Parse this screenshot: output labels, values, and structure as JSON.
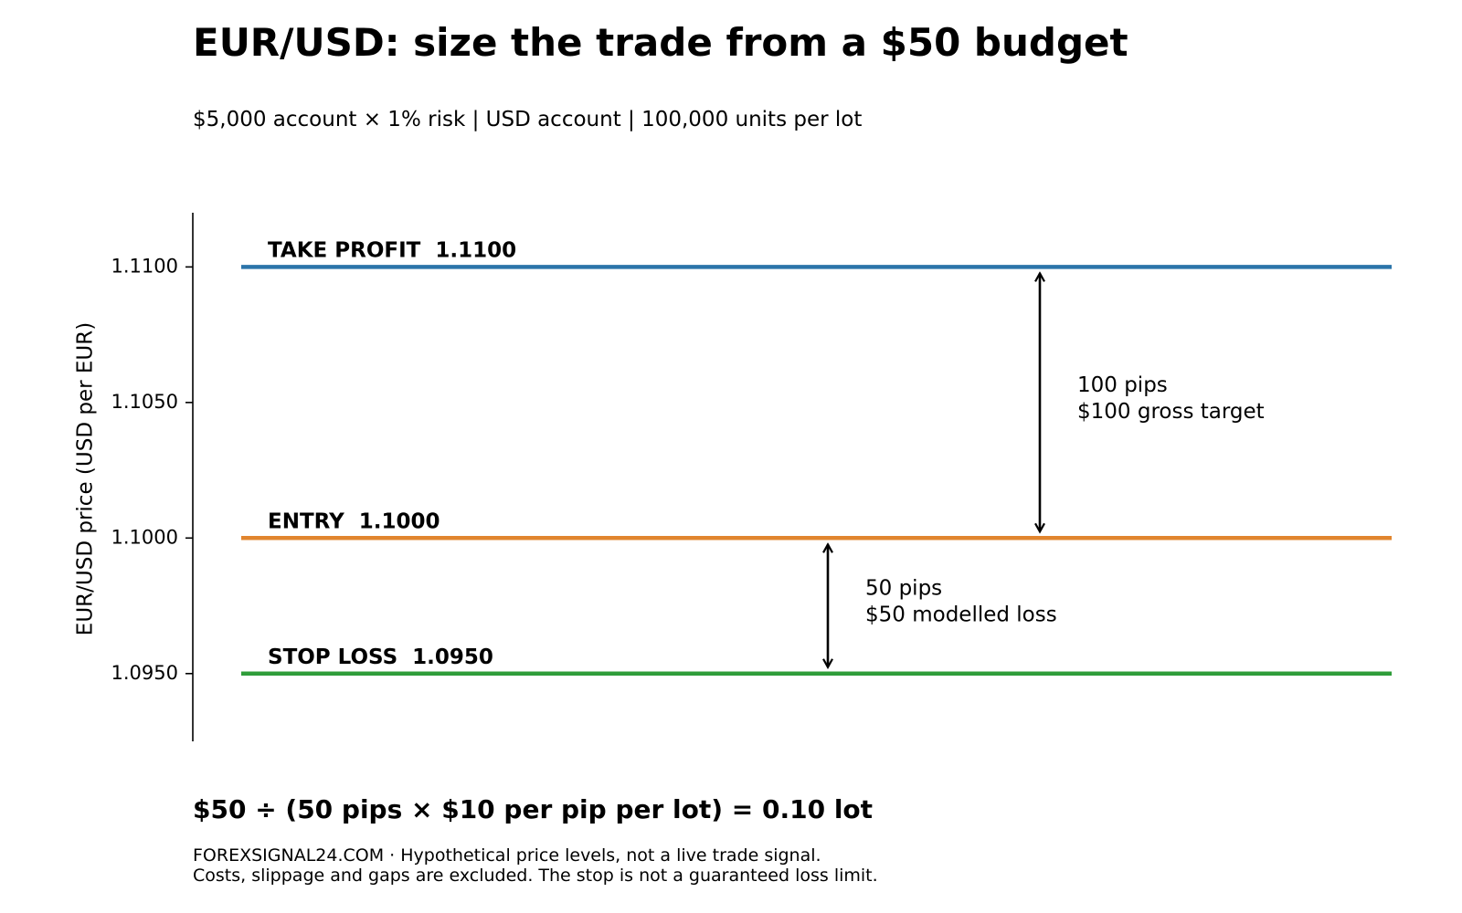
{
  "header": {
    "title": "EUR/USD: size the trade from a $50 budget",
    "subtitle": "$5,000 account × 1% risk  |  USD account  |  100,000 units per lot"
  },
  "chart_data": {
    "type": "line",
    "title": "EUR/USD: size the trade from a $50 budget",
    "ylabel": "EUR/USD price (USD per EUR)",
    "xlabel": "",
    "ylim": [
      1.0925,
      1.112
    ],
    "yticks": [
      "1.0950",
      "1.1000",
      "1.1050",
      "1.1100"
    ],
    "ytick_values": [
      1.095,
      1.1,
      1.105,
      1.11
    ],
    "grid": false,
    "levels": [
      {
        "name": "take_profit",
        "label": "TAKE PROFIT  1.1100",
        "value": 1.11,
        "color": "#2b74aa"
      },
      {
        "name": "entry",
        "label": "ENTRY  1.1000",
        "value": 1.1,
        "color": "#e1852e"
      },
      {
        "name": "stop_loss",
        "label": "STOP LOSS  1.0950",
        "value": 1.095,
        "color": "#2f9d3a"
      }
    ],
    "annotations": [
      {
        "name": "target-distance",
        "from": 1.1,
        "to": 1.11,
        "lines": [
          "100 pips",
          "$100 gross target"
        ]
      },
      {
        "name": "risk-distance",
        "from": 1.095,
        "to": 1.1,
        "lines": [
          "50 pips",
          "$50 modelled loss"
        ]
      }
    ]
  },
  "formula": "$50 ÷ (50 pips × $10 per pip per lot) = 0.10 lot",
  "footnote": {
    "line1": "FOREXSIGNAL24.COM  ·  Hypothetical price levels, not a live trade signal.",
    "line2": "Costs, slippage and gaps are excluded. The stop is not a guaranteed loss limit."
  }
}
